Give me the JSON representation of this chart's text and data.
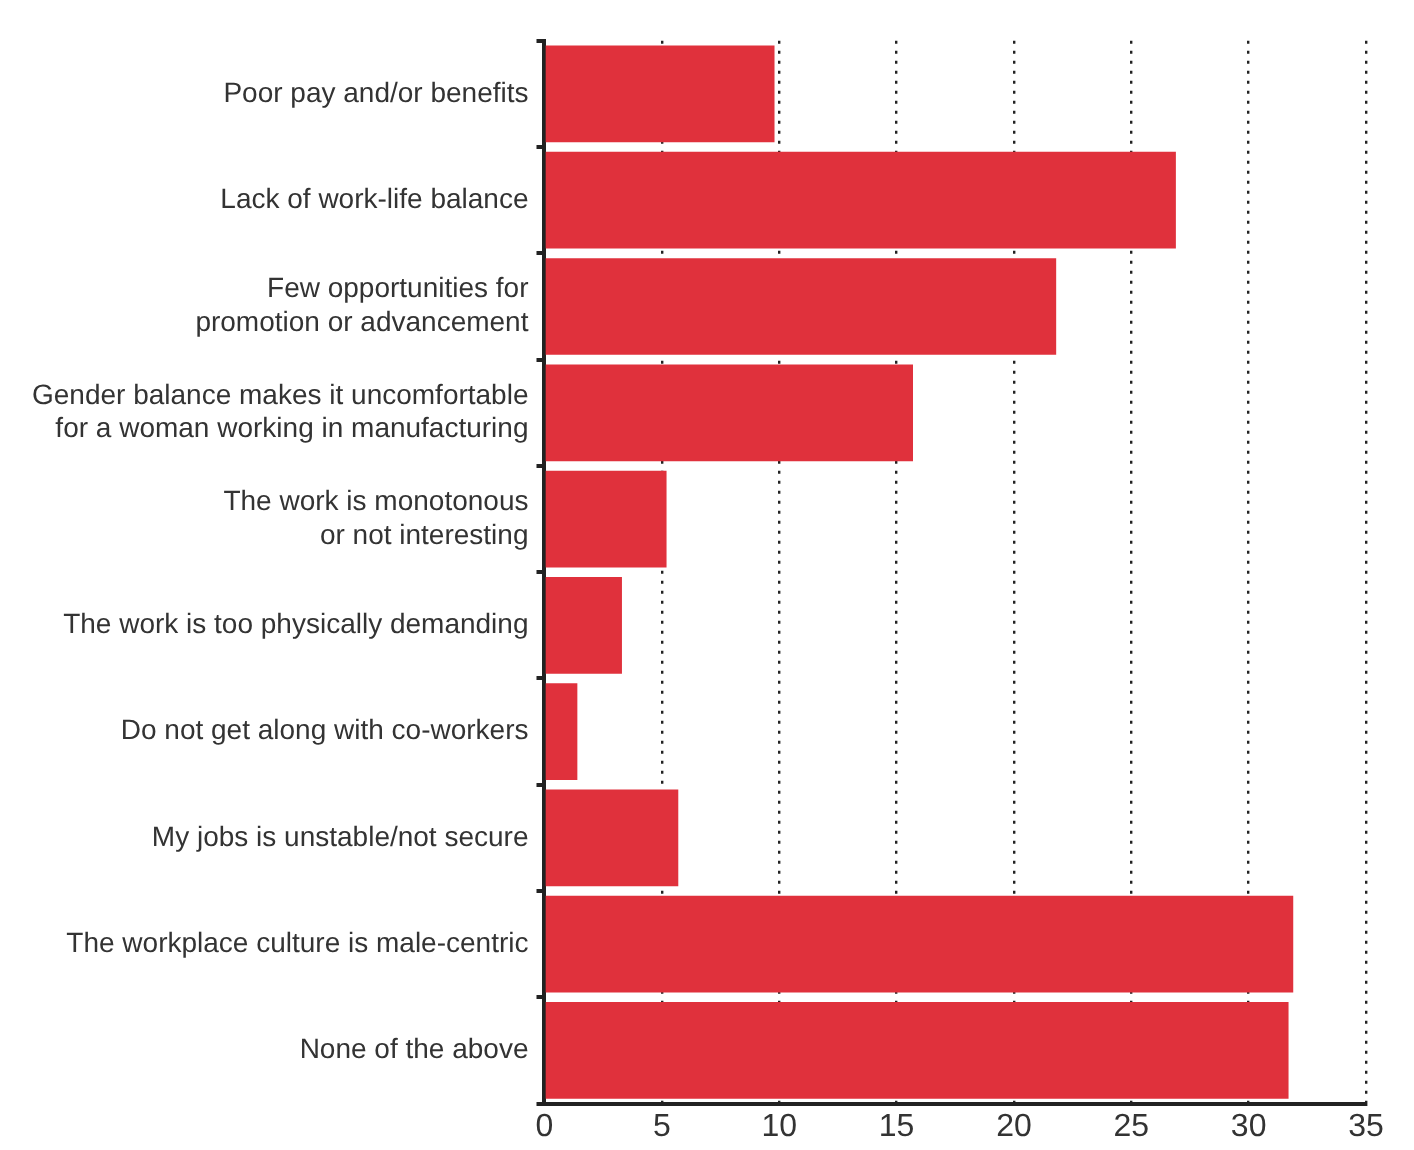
{
  "chart_data": {
    "type": "bar",
    "orientation": "horizontal",
    "categories": [
      "Poor pay and/or benefits",
      "Lack of work-life balance",
      "Few opportunities for\npromotion or advancement",
      "Gender balance makes it uncomfortable\nfor a woman working in manufacturing",
      "The work is monotonous\nor not interesting",
      "The work is too physically demanding",
      "Do not get along with co-workers",
      "My jobs is unstable/not secure",
      "The workplace culture is male-centric",
      "None of the above"
    ],
    "values": [
      9.8,
      26.9,
      21.8,
      15.7,
      5.2,
      3.3,
      1.4,
      5.7,
      31.9,
      31.7
    ],
    "color": "#e0313c",
    "xlim": [
      0,
      35
    ],
    "xticks": [
      0,
      5,
      10,
      15,
      20,
      25,
      30,
      35
    ],
    "grid": "x",
    "legend": false
  }
}
